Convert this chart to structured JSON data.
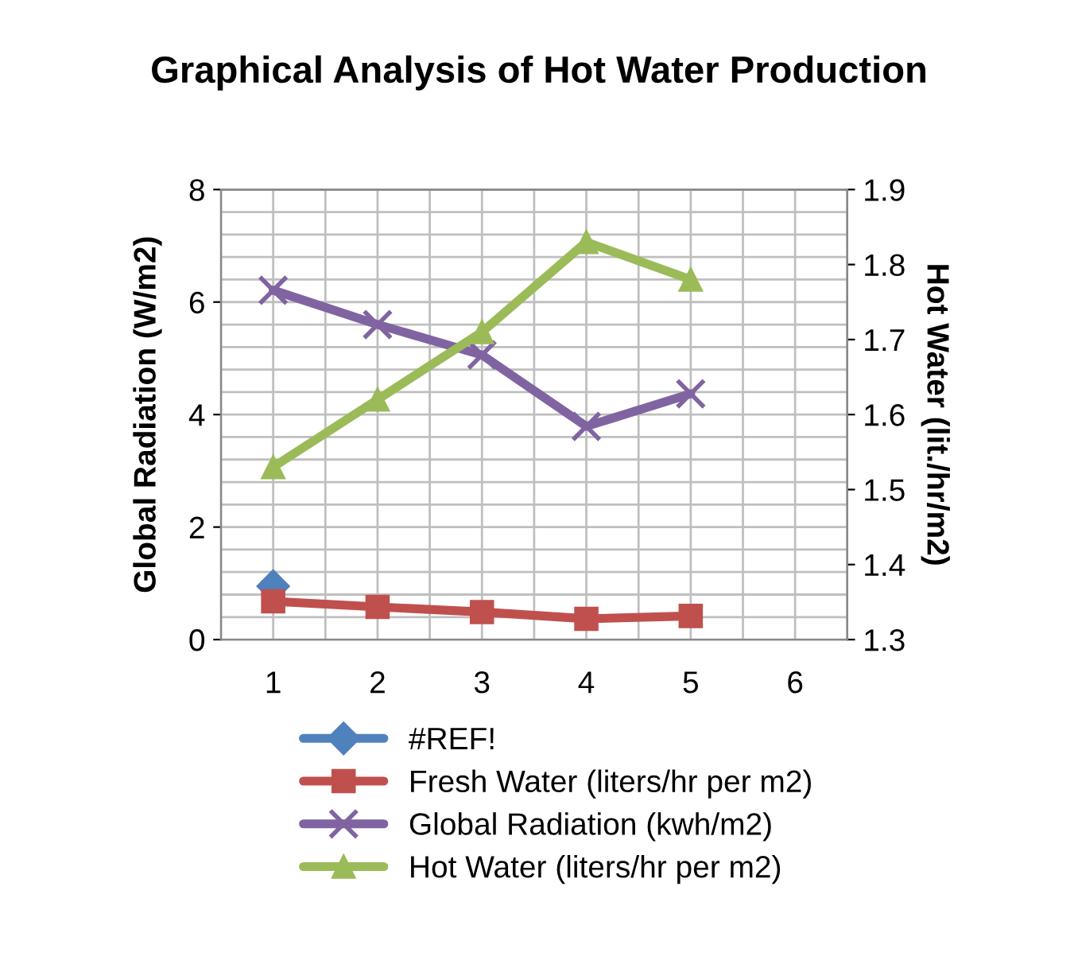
{
  "chart_data": {
    "type": "line",
    "title": "Graphical Analysis of Hot Water Production",
    "ylabel": "Global Radiation (W/m2)",
    "y2label": "Hot Water (lit./hr/m2)",
    "categories": [
      "1",
      "2",
      "3",
      "4",
      "5",
      "6"
    ],
    "series": [
      {
        "name": "#REF!",
        "color": "#4f81bd",
        "marker": "diamond",
        "values": [
          0.95,
          null,
          null,
          null,
          null,
          null
        ]
      },
      {
        "name": "Fresh Water (liters/hr per m2)",
        "color": "#c0504d",
        "marker": "square",
        "values": [
          0.68,
          0.58,
          0.49,
          0.37,
          0.42,
          null
        ]
      },
      {
        "name": "Global Radiation (kwh/m2)",
        "color": "#8064a2",
        "marker": "cross",
        "values": [
          6.21,
          5.6,
          5.06,
          3.79,
          4.37,
          null
        ]
      },
      {
        "name": "Hot Water (liters/hr per m2)",
        "color": "#9bbb59",
        "marker": "triangle",
        "axis": "y2",
        "values": [
          1.53,
          1.62,
          1.71,
          1.83,
          1.78,
          null
        ]
      }
    ],
    "ylim": [
      0,
      8
    ],
    "yticks": [
      0,
      2,
      4,
      6,
      8
    ],
    "y2lim": [
      1.3,
      1.9
    ],
    "y2ticks": [
      {
        "value": 1.3,
        "label": "1.3"
      },
      {
        "value": 1.4,
        "label": "1.4"
      },
      {
        "value": 1.5,
        "label": "1.5"
      },
      {
        "value": 1.6,
        "label": "1.6"
      },
      {
        "value": 1.7,
        "label": "1.7"
      },
      {
        "value": 1.8,
        "label": "1.8"
      },
      {
        "value": 1.9,
        "label": "1.9"
      }
    ],
    "grid": true,
    "legend": "bottom",
    "line_style": "solid"
  }
}
